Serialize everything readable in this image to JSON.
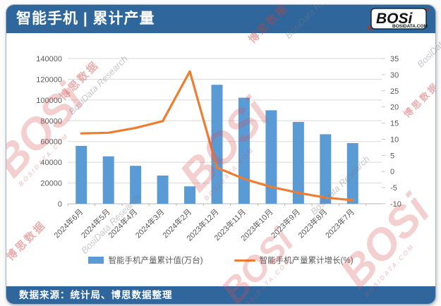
{
  "header": {
    "title": "智能手机 | 累计产量",
    "logo": {
      "text": "BOSi",
      "domain": "BOSIDATA.COM"
    }
  },
  "footer": {
    "source": "数据来源：统计局、博思数据整理"
  },
  "watermark": {
    "brand": "BOSi",
    "domain": "BOSIDATA.COM",
    "cjk": "博思数据",
    "research": "BosiData Research"
  },
  "colors": {
    "header_bg": "#2f679c",
    "bar": "#5b9bd5",
    "line": "#ed7d31",
    "grid": "#d9d9d9",
    "axis_text": "#595959"
  },
  "chart_data": {
    "type": "bar",
    "subtype": "combo-bar-line",
    "title": "智能手机 | 累计产量",
    "categories": [
      "2024年6月",
      "2024年5月",
      "2024年4月",
      "2024年3月",
      "2024年2月",
      "2023年12月",
      "2023年11月",
      "2023年10月",
      "2023年9月",
      "2023年8月",
      "2023年7月"
    ],
    "series": [
      {
        "name": "智能手机产量累计值(万台)",
        "type": "bar",
        "axis": "left",
        "color": "#5b9bd5",
        "values": [
          55800,
          45700,
          36600,
          27200,
          16800,
          114700,
          102200,
          90100,
          78900,
          67000,
          58500
        ]
      },
      {
        "name": "智能手机产量累计增长(%)",
        "type": "line",
        "axis": "right",
        "color": "#ed7d31",
        "values": [
          11.8,
          12.0,
          13.5,
          15.6,
          31.0,
          1.2,
          -2.3,
          -4.8,
          -6.6,
          -8.1,
          -8.9
        ]
      }
    ],
    "left_axis": {
      "min": 0,
      "max": 140000,
      "ticks": [
        0,
        20000,
        40000,
        60000,
        80000,
        100000,
        120000,
        140000
      ]
    },
    "right_axis": {
      "min": -10,
      "max": 35,
      "ticks": [
        -10,
        -5,
        0,
        5,
        10,
        15,
        20,
        25,
        30,
        35
      ]
    },
    "grid": "horizontal",
    "legend_position": "bottom"
  }
}
